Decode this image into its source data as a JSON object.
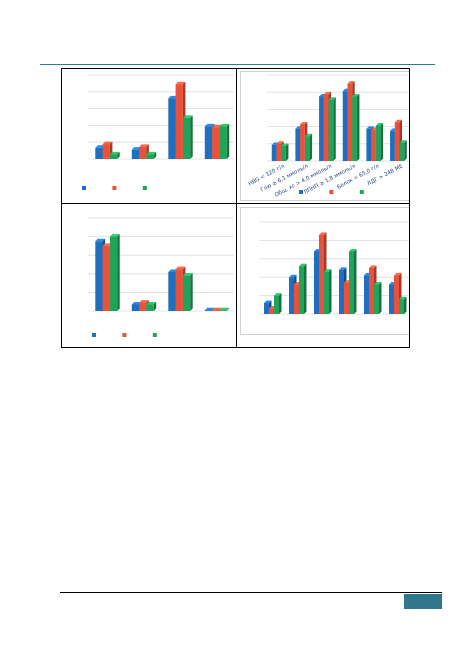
{
  "colors": {
    "series": [
      "#1f6fc1",
      "#e8513a",
      "#22a35a"
    ],
    "grid": "#dcdcdc",
    "rule": "#2e7d8c",
    "badge": "#31788c"
  },
  "page": {
    "number": ""
  },
  "chart_data": [
    {
      "type": "bar",
      "categories": [
        "",
        "",
        "",
        ""
      ],
      "series": [
        {
          "values": [
            1.2,
            1.0,
            6.5,
            3.5
          ]
        },
        {
          "values": [
            1.6,
            1.3,
            8.0,
            3.4
          ]
        },
        {
          "values": [
            0.5,
            0.5,
            4.4,
            3.5
          ]
        }
      ],
      "ylim": [
        0,
        9
      ],
      "grid": true,
      "legend": "bottom-left"
    },
    {
      "type": "bar",
      "categories": [
        "HBG < 120 г/л",
        "Глю ≥ 6,1 ммоль/л",
        "Общ. хс > 4,0 ммоль/л",
        "ЛПНП ≥ 1,8 ммоль/л",
        "Белок < 65,0 г/л",
        "ЛДГ > 248 МЕ"
      ],
      "series": [
        {
          "values": [
            1.5,
            3.0,
            6.0,
            6.5,
            3.0,
            2.8
          ]
        },
        {
          "values": [
            1.6,
            3.4,
            6.2,
            7.2,
            2.9,
            3.6
          ]
        },
        {
          "values": [
            1.4,
            2.3,
            5.7,
            6.0,
            3.3,
            1.7
          ]
        }
      ],
      "ylim": [
        0,
        8
      ],
      "grid": true,
      "legend": "bottom"
    },
    {
      "type": "bar",
      "categories": [
        "",
        "",
        "",
        ""
      ],
      "series": [
        {
          "values": [
            7.5,
            0.7,
            4.2,
            0.05
          ]
        },
        {
          "values": [
            7.0,
            0.9,
            4.5,
            0.05
          ]
        },
        {
          "values": [
            8.0,
            0.7,
            3.8,
            0.05
          ]
        }
      ],
      "ylim": [
        0,
        10
      ],
      "grid": true,
      "legend": "bottom-left"
    },
    {
      "type": "bar",
      "categories": [
        "",
        "",
        "",
        "",
        "",
        ""
      ],
      "series": [
        {
          "values": [
            0.6,
            2.0,
            3.4,
            2.4,
            2.1,
            1.6
          ]
        },
        {
          "values": [
            0.3,
            1.6,
            4.3,
            1.7,
            2.5,
            2.1
          ]
        },
        {
          "values": [
            1.0,
            2.6,
            2.3,
            3.4,
            1.6,
            0.8
          ]
        }
      ],
      "ylim": [
        0,
        5
      ],
      "grid": true,
      "legend": "none"
    }
  ]
}
